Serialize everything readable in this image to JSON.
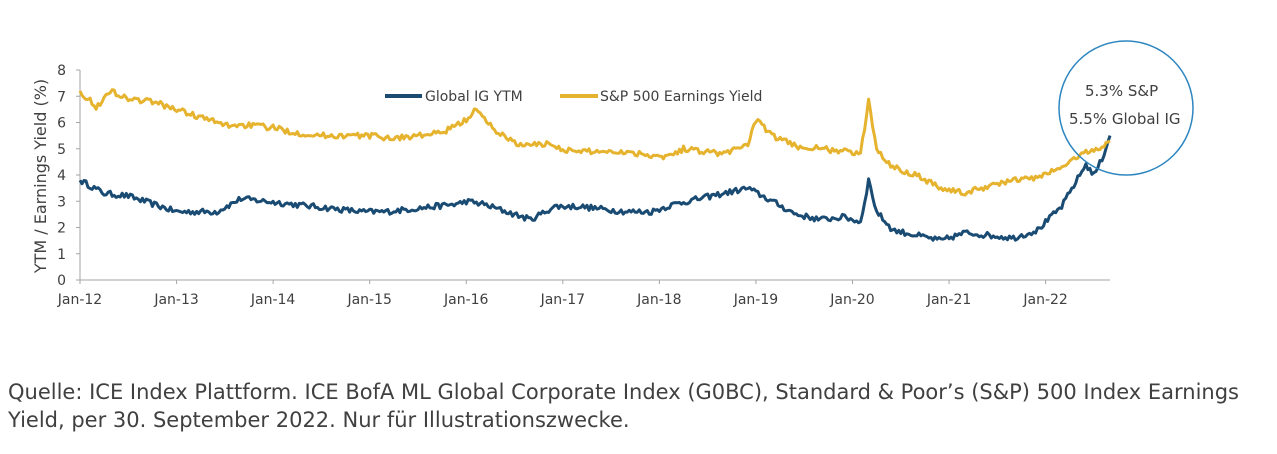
{
  "chart_data": {
    "type": "line",
    "ylabel": "YTM  / Earnings Yield (%)",
    "xlabel": "",
    "ylim": [
      0,
      8
    ],
    "yticks": [
      "0",
      "1",
      "2",
      "3",
      "4",
      "5",
      "6",
      "7",
      "8"
    ],
    "x_tick_labels": [
      "Jan-12",
      "Jan-13",
      "Jan-14",
      "Jan-15",
      "Jan-16",
      "Jan-17",
      "Jan-18",
      "Jan-19",
      "Jan-20",
      "Jan-21",
      "Jan-22"
    ],
    "x_range": [
      "2012-01",
      "2022-09"
    ],
    "legend_position": "top-center",
    "series": [
      {
        "name": "Global IG YTM",
        "color": "#1a4b73",
        "x": [
          "2012-01",
          "2012-04",
          "2012-07",
          "2012-10",
          "2013-01",
          "2013-04",
          "2013-06",
          "2013-09",
          "2013-12",
          "2014-03",
          "2014-06",
          "2014-09",
          "2014-12",
          "2015-03",
          "2015-06",
          "2015-09",
          "2015-12",
          "2016-01",
          "2016-03",
          "2016-06",
          "2016-09",
          "2016-12",
          "2017-03",
          "2017-06",
          "2017-09",
          "2017-12",
          "2018-03",
          "2018-06",
          "2018-09",
          "2018-12",
          "2019-03",
          "2019-06",
          "2019-09",
          "2019-12",
          "2020-02",
          "2020-03",
          "2020-04",
          "2020-06",
          "2020-09",
          "2020-12",
          "2021-03",
          "2021-06",
          "2021-09",
          "2021-12",
          "2022-03",
          "2022-06",
          "2022-07",
          "2022-08",
          "2022-09"
        ],
        "values": [
          3.8,
          3.3,
          3.2,
          2.9,
          2.6,
          2.6,
          2.6,
          3.1,
          3.0,
          2.9,
          2.8,
          2.7,
          2.6,
          2.6,
          2.7,
          2.8,
          2.9,
          3.0,
          2.9,
          2.6,
          2.3,
          2.8,
          2.8,
          2.7,
          2.6,
          2.6,
          2.9,
          3.1,
          3.3,
          3.5,
          3.0,
          2.5,
          2.3,
          2.4,
          2.2,
          3.8,
          2.6,
          1.9,
          1.7,
          1.5,
          1.8,
          1.7,
          1.6,
          1.9,
          2.8,
          4.4,
          4.0,
          4.6,
          5.5
        ]
      },
      {
        "name": "S&P 500 Earnings Yield",
        "color": "#e6b32e",
        "x": [
          "2012-01",
          "2012-03",
          "2012-05",
          "2012-07",
          "2012-10",
          "2013-01",
          "2013-04",
          "2013-07",
          "2013-10",
          "2014-01",
          "2014-04",
          "2014-07",
          "2014-10",
          "2015-01",
          "2015-04",
          "2015-07",
          "2015-10",
          "2016-01",
          "2016-02",
          "2016-05",
          "2016-08",
          "2016-11",
          "2017-02",
          "2017-05",
          "2017-08",
          "2017-11",
          "2018-02",
          "2018-04",
          "2018-07",
          "2018-09",
          "2018-12",
          "2019-01",
          "2019-03",
          "2019-06",
          "2019-09",
          "2019-12",
          "2020-02",
          "2020-03",
          "2020-04",
          "2020-06",
          "2020-09",
          "2020-12",
          "2021-03",
          "2021-06",
          "2021-09",
          "2021-12",
          "2022-03",
          "2022-06",
          "2022-07",
          "2022-09"
        ],
        "values": [
          7.2,
          6.6,
          7.2,
          6.9,
          6.8,
          6.5,
          6.2,
          5.9,
          5.9,
          5.8,
          5.6,
          5.5,
          5.5,
          5.5,
          5.4,
          5.5,
          5.6,
          6.1,
          6.5,
          5.6,
          5.1,
          5.2,
          4.9,
          4.9,
          4.9,
          4.8,
          4.7,
          5.0,
          4.9,
          4.8,
          5.2,
          6.1,
          5.5,
          5.1,
          5.0,
          4.9,
          4.8,
          6.8,
          5.0,
          4.3,
          4.0,
          3.5,
          3.3,
          3.6,
          3.8,
          3.9,
          4.3,
          4.9,
          4.9,
          5.3
        ]
      }
    ],
    "annotation": {
      "line1": "5.3% S&P",
      "line2": "5.5% Global IG",
      "circle_color": "#2e86c1"
    }
  },
  "source_note": "Quelle: ICE Index Plattform. ICE BofA ML Global Corporate Index (G0BC), Standard & Poor’s (S&P) 500 Index Earnings Yield, per 30. September 2022. Nur für Illustrationszwecke."
}
